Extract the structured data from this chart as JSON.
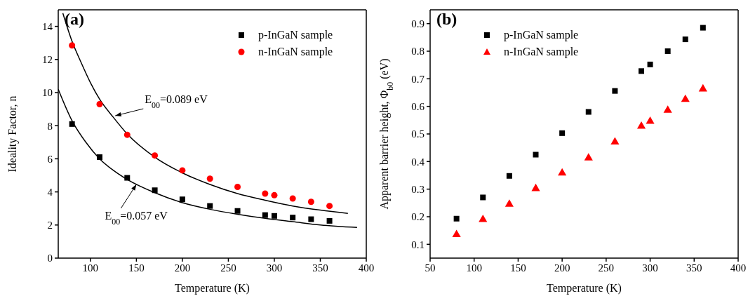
{
  "chart_data": [
    {
      "type": "scatter",
      "xlabel": "Temperature (K)",
      "ylabel": "Ideality Factor, n",
      "xlim": [
        65,
        400
      ],
      "xticks": [
        100,
        150,
        200,
        250,
        300,
        350,
        400
      ],
      "ylim": [
        0,
        15
      ],
      "yticks": [
        0,
        2,
        4,
        6,
        8,
        10,
        12,
        14
      ],
      "grid": false,
      "legend": "top right",
      "x": [
        80,
        110,
        140,
        170,
        200,
        230,
        260,
        290,
        300,
        320,
        340,
        360
      ],
      "series": [
        {
          "name": "p-InGaN sample",
          "color": "#000000",
          "marker": "square",
          "values": [
            8.1,
            6.1,
            4.85,
            4.1,
            3.55,
            3.15,
            2.85,
            2.6,
            2.55,
            2.45,
            2.35,
            2.25
          ]
        },
        {
          "name": "n-InGaN sample",
          "color": "#ff0000",
          "marker": "circle",
          "values": [
            12.85,
            9.3,
            7.45,
            6.2,
            5.3,
            4.8,
            4.3,
            3.9,
            3.8,
            3.6,
            3.4,
            3.15
          ]
        },
        {
          "type": "line",
          "color": "#000000",
          "marker": "none",
          "x": [
            70,
            80,
            90,
            100,
            110,
            125,
            140,
            170,
            200,
            230,
            260,
            290,
            320,
            350,
            380
          ],
          "values": [
            14.8,
            13.1,
            11.8,
            10.6,
            9.6,
            8.5,
            7.5,
            6.1,
            5.15,
            4.45,
            3.9,
            3.5,
            3.15,
            2.9,
            2.7
          ]
        },
        {
          "type": "line",
          "color": "#000000",
          "marker": "none",
          "x": [
            65,
            80,
            95,
            110,
            125,
            140,
            170,
            200,
            230,
            260,
            290,
            320,
            350,
            390
          ],
          "values": [
            10.2,
            8.3,
            7.0,
            6.0,
            5.3,
            4.75,
            3.95,
            3.35,
            2.95,
            2.65,
            2.4,
            2.2,
            2.0,
            1.85
          ]
        }
      ],
      "annotations": [
        "(a)",
        {
          "text": "E$_{00}$=0.089 eV",
          "x": 127,
          "y": 8.6
        },
        {
          "text": "E$_{00}$=0.057 eV",
          "x": 150,
          "y": 4.45
        }
      ]
    },
    {
      "type": "scatter",
      "xlabel": "Temperature (K)",
      "ylabel": "Apparent barrier height, Φ$_{b0}$ (eV)",
      "xlim": [
        50,
        400
      ],
      "xticks": [
        50,
        100,
        150,
        200,
        250,
        300,
        350,
        400
      ],
      "ylim": [
        0.05,
        0.95
      ],
      "yticks": [
        0.1,
        0.2,
        0.3,
        0.4,
        0.5,
        0.6,
        0.7,
        0.8,
        0.9
      ],
      "grid": false,
      "legend": "top left",
      "x": [
        80,
        110,
        140,
        170,
        200,
        230,
        260,
        290,
        300,
        320,
        340,
        360
      ],
      "series": [
        {
          "name": "p-InGaN sample",
          "color": "#000000",
          "marker": "square",
          "values": [
            0.193,
            0.27,
            0.348,
            0.425,
            0.503,
            0.58,
            0.656,
            0.728,
            0.752,
            0.8,
            0.843,
            0.885
          ]
        },
        {
          "name": "n-InGaN sample",
          "color": "#ff0000",
          "marker": "triangle",
          "values": [
            0.135,
            0.19,
            0.245,
            0.302,
            0.358,
            0.413,
            0.471,
            0.528,
            0.546,
            0.586,
            0.625,
            0.663
          ]
        }
      ],
      "annotations": [
        "(b)"
      ]
    }
  ]
}
